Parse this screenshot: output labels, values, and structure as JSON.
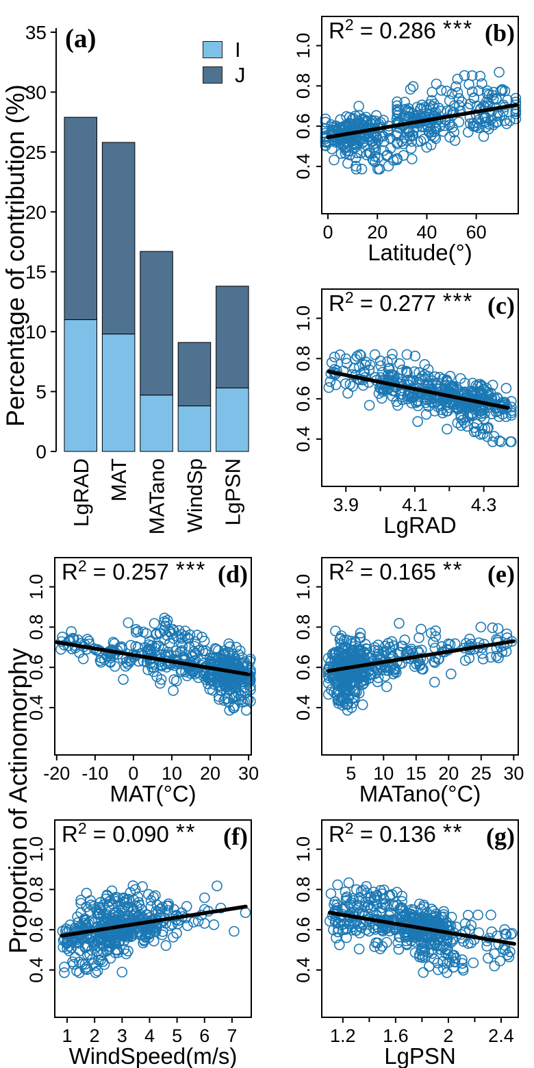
{
  "shared": {
    "background": "#ffffff",
    "point_color": "#1B78B4",
    "trend_color": "#000000",
    "scatter_ylabel": "Proportion of Actinomorphy",
    "scatter_y_ticks": [
      0.4,
      0.6,
      0.8,
      1.0
    ],
    "scatter_ylim": [
      0.165,
      1.145
    ]
  },
  "chart_data": [
    {
      "type": "bar",
      "panel_label": "(a)",
      "ylabel": "Percentage of contribution (%)",
      "categories": [
        "LgRAD",
        "MAT",
        "MATano",
        "WindSp",
        "LgPSN"
      ],
      "series": [
        {
          "name": "I",
          "color": "#7EC0E8",
          "values": [
            11.0,
            9.8,
            4.7,
            3.8,
            5.3
          ]
        },
        {
          "name": "J",
          "color": "#4E7290",
          "values": [
            16.9,
            16.0,
            12.0,
            5.3,
            8.5
          ]
        }
      ],
      "stack_totals": [
        27.9,
        25.8,
        16.7,
        9.1,
        13.8
      ],
      "y_ticks": [
        0,
        5,
        10,
        15,
        20,
        25,
        30,
        35
      ],
      "ylim": [
        0,
        35
      ],
      "legend_position": "top-right",
      "grid": false
    },
    {
      "type": "scatter",
      "panel_label": "(b)",
      "r_base": "R",
      "r_exponent": "2",
      "r_equals": " = ",
      "r2_value": "0.286",
      "significance": "***",
      "xlabel": "Latitude(°)",
      "x_ticks": [
        0,
        20,
        40,
        60
      ],
      "x_minor_ticks": [],
      "xlim": [
        -2.5,
        77
      ],
      "trend_line": {
        "x": [
          0,
          76
        ],
        "y": [
          0.545,
          0.705
        ]
      },
      "point_cloud": {
        "clusters": [
          {
            "n": 210,
            "x": {
              "dist": "gauss",
              "mean": 11,
              "sd": 8,
              "clip": [
                -1,
                32
              ]
            },
            "y_sd": 0.045,
            "y_off": 0
          },
          {
            "n": 140,
            "x": {
              "dist": "gauss",
              "mean": 40,
              "sd": 9,
              "clip": [
                28,
                58
              ]
            },
            "y_sd": 0.055,
            "y_off": 0
          },
          {
            "n": 70,
            "x": {
              "dist": "gauss",
              "mean": 64,
              "sd": 7,
              "clip": [
                55,
                76
              ]
            },
            "y_sd": 0.05,
            "y_off": 0
          },
          {
            "n": 26,
            "x": {
              "dist": "gauss",
              "mean": 21,
              "sd": 6,
              "clip": [
                8,
                34
              ]
            },
            "y_sd": 0.035,
            "y_off": -0.16
          },
          {
            "n": 16,
            "x": {
              "dist": "uniform",
              "lo": 30,
              "hi": 72
            },
            "y_sd": 0.03,
            "y_off": 0.14
          }
        ]
      }
    },
    {
      "type": "scatter",
      "panel_label": "(c)",
      "r_base": "R",
      "r_exponent": "2",
      "r_equals": " = ",
      "r2_value": "0.277",
      "significance": "***",
      "xlabel": "LgRAD",
      "x_ticks": [
        3.9,
        4.1,
        4.3
      ],
      "x_minor_ticks": [
        4.0,
        4.2
      ],
      "xlim": [
        3.83,
        4.4
      ],
      "trend_line": {
        "x": [
          3.85,
          4.37
        ],
        "y": [
          0.735,
          0.555
        ]
      },
      "point_cloud": {
        "clusters": [
          {
            "n": 55,
            "x": {
              "dist": "uniform",
              "lo": 3.85,
              "hi": 4.05
            },
            "y_sd": 0.05,
            "y_off": 0
          },
          {
            "n": 115,
            "x": {
              "dist": "uniform",
              "lo": 4.0,
              "hi": 4.2
            },
            "y_sd": 0.05,
            "y_off": 0
          },
          {
            "n": 240,
            "x": {
              "dist": "gauss",
              "mean": 4.25,
              "sd": 0.07,
              "clip": [
                4.05,
                4.38
              ]
            },
            "y_sd": 0.045,
            "y_off": 0
          },
          {
            "n": 12,
            "x": {
              "dist": "uniform",
              "lo": 3.86,
              "hi": 4.12
            },
            "y_sd": 0.03,
            "y_off": 0.11
          },
          {
            "n": 22,
            "x": {
              "dist": "gauss",
              "mean": 4.28,
              "sd": 0.05,
              "clip": [
                4.1,
                4.38
              ]
            },
            "y_sd": 0.03,
            "y_off": -0.15
          }
        ]
      }
    },
    {
      "type": "scatter",
      "panel_label": "(d)",
      "r_base": "R",
      "r_exponent": "2",
      "r_equals": " = ",
      "r2_value": "0.257",
      "significance": "***",
      "xlabel": "MAT(°C)",
      "x_ticks": [
        -20,
        -10,
        0,
        10,
        20,
        30
      ],
      "x_minor_ticks": [],
      "xlim": [
        -20.5,
        30.7
      ],
      "trend_line": {
        "x": [
          -20,
          30
        ],
        "y": [
          0.725,
          0.565
        ]
      },
      "point_cloud": {
        "clusters": [
          {
            "n": 40,
            "x": {
              "dist": "uniform",
              "lo": -20,
              "hi": -3
            },
            "y_sd": 0.03,
            "y_off": 0
          },
          {
            "n": 150,
            "x": {
              "dist": "gauss",
              "mean": 8,
              "sd": 7,
              "clip": [
                -6,
                20
              ]
            },
            "y_sd": 0.045,
            "y_off": 0
          },
          {
            "n": 220,
            "x": {
              "dist": "gauss",
              "mean": 25,
              "sd": 3.5,
              "clip": [
                16,
                30.5
              ]
            },
            "y_sd": 0.05,
            "y_off": 0
          },
          {
            "n": 45,
            "x": {
              "dist": "gauss",
              "mean": 10,
              "sd": 5,
              "clip": [
                -2,
                20
              ]
            },
            "y_sd": 0.035,
            "y_off": 0.135
          },
          {
            "n": 28,
            "x": {
              "dist": "gauss",
              "mean": 26,
              "sd": 2.5,
              "clip": [
                20,
                30.5
              ]
            },
            "y_sd": 0.035,
            "y_off": -0.14
          }
        ]
      }
    },
    {
      "type": "scatter",
      "panel_label": "(e)",
      "r_base": "R",
      "r_exponent": "2",
      "r_equals": " = ",
      "r2_value": "0.165",
      "significance": "**",
      "xlabel": "MATano(°C)",
      "x_ticks": [
        5,
        10,
        15,
        20,
        25,
        30
      ],
      "x_minor_ticks": [],
      "xlim": [
        0.5,
        30.7
      ],
      "trend_line": {
        "x": [
          1.5,
          30
        ],
        "y": [
          0.582,
          0.73
        ]
      },
      "point_cloud": {
        "clusters": [
          {
            "n": 270,
            "x": {
              "dist": "gauss",
              "mean": 4.5,
              "sd": 1.5,
              "clip": [
                1.5,
                8
              ]
            },
            "y_sd": 0.065,
            "y_off": 0
          },
          {
            "n": 110,
            "x": {
              "dist": "gauss",
              "mean": 11,
              "sd": 3,
              "clip": [
                7,
                18
              ]
            },
            "y_sd": 0.055,
            "y_off": 0
          },
          {
            "n": 55,
            "x": {
              "dist": "uniform",
              "lo": 15,
              "hi": 30
            },
            "y_sd": 0.05,
            "y_off": 0
          },
          {
            "n": 22,
            "x": {
              "dist": "gauss",
              "mean": 4,
              "sd": 1,
              "clip": [
                2,
                7
              ]
            },
            "y_sd": 0.035,
            "y_off": -0.155
          }
        ]
      }
    },
    {
      "type": "scatter",
      "panel_label": "(f)",
      "r_base": "R",
      "r_exponent": "2",
      "r_equals": " = ",
      "r2_value": "0.090",
      "significance": "**",
      "xlabel": "WindSpeed(m/s)",
      "x_ticks": [
        1,
        2,
        3,
        4,
        5,
        6,
        7
      ],
      "x_minor_ticks": [],
      "xlim": [
        0.55,
        7.7
      ],
      "trend_line": {
        "x": [
          0.8,
          7.5
        ],
        "y": [
          0.57,
          0.715
        ]
      },
      "point_cloud": {
        "clusters": [
          {
            "n": 290,
            "x": {
              "dist": "gauss",
              "mean": 2.8,
              "sd": 0.8,
              "clip": [
                1,
                4.8
              ]
            },
            "y_sd": 0.055,
            "y_off": 0
          },
          {
            "n": 85,
            "x": {
              "dist": "gauss",
              "mean": 4,
              "sd": 1,
              "clip": [
                2.5,
                6
              ]
            },
            "y_sd": 0.055,
            "y_off": 0
          },
          {
            "n": 25,
            "x": {
              "dist": "uniform",
              "lo": 0.8,
              "hi": 1.6
            },
            "y_sd": 0.04,
            "y_off": 0
          },
          {
            "n": 30,
            "x": {
              "dist": "gauss",
              "mean": 2.8,
              "sd": 0.7,
              "clip": [
                1.5,
                4.5
              ]
            },
            "y_sd": 0.03,
            "y_off": 0.135
          },
          {
            "n": 25,
            "x": {
              "dist": "gauss",
              "mean": 1.8,
              "sd": 0.5,
              "clip": [
                0.9,
                3
              ]
            },
            "y_sd": 0.03,
            "y_off": -0.155
          },
          {
            "n": 6,
            "x": {
              "dist": "uniform",
              "lo": 6,
              "hi": 7.5
            },
            "y_sd": 0.06,
            "y_off": 0
          }
        ]
      }
    },
    {
      "type": "scatter",
      "panel_label": "(g)",
      "r_base": "R",
      "r_exponent": "2",
      "r_equals": " = ",
      "r2_value": "0.136",
      "significance": "**",
      "xlabel": "LgPSN",
      "x_ticks": [
        1.2,
        1.6,
        2.0,
        2.4
      ],
      "x_minor_ticks": [
        1.4,
        1.8,
        2.2
      ],
      "xlim": [
        1.04,
        2.53
      ],
      "trend_line": {
        "x": [
          1.1,
          2.5
        ],
        "y": [
          0.685,
          0.53
        ]
      },
      "point_cloud": {
        "clusters": [
          {
            "n": 115,
            "x": {
              "dist": "uniform",
              "lo": 1.1,
              "hi": 1.55
            },
            "y_sd": 0.06,
            "y_off": 0
          },
          {
            "n": 270,
            "x": {
              "dist": "gauss",
              "mean": 1.8,
              "sd": 0.16,
              "clip": [
                1.5,
                2.15
              ]
            },
            "y_sd": 0.05,
            "y_off": 0
          },
          {
            "n": 30,
            "x": {
              "dist": "uniform",
              "lo": 2.1,
              "hi": 2.5
            },
            "y_sd": 0.055,
            "y_off": 0
          },
          {
            "n": 25,
            "x": {
              "dist": "gauss",
              "mean": 1.45,
              "sd": 0.15,
              "clip": [
                1.15,
                1.75
              ]
            },
            "y_sd": 0.03,
            "y_off": 0.125
          },
          {
            "n": 30,
            "x": {
              "dist": "gauss",
              "mean": 1.95,
              "sd": 0.12,
              "clip": [
                1.6,
                2.25
              ]
            },
            "y_sd": 0.03,
            "y_off": -0.15
          }
        ]
      }
    }
  ]
}
